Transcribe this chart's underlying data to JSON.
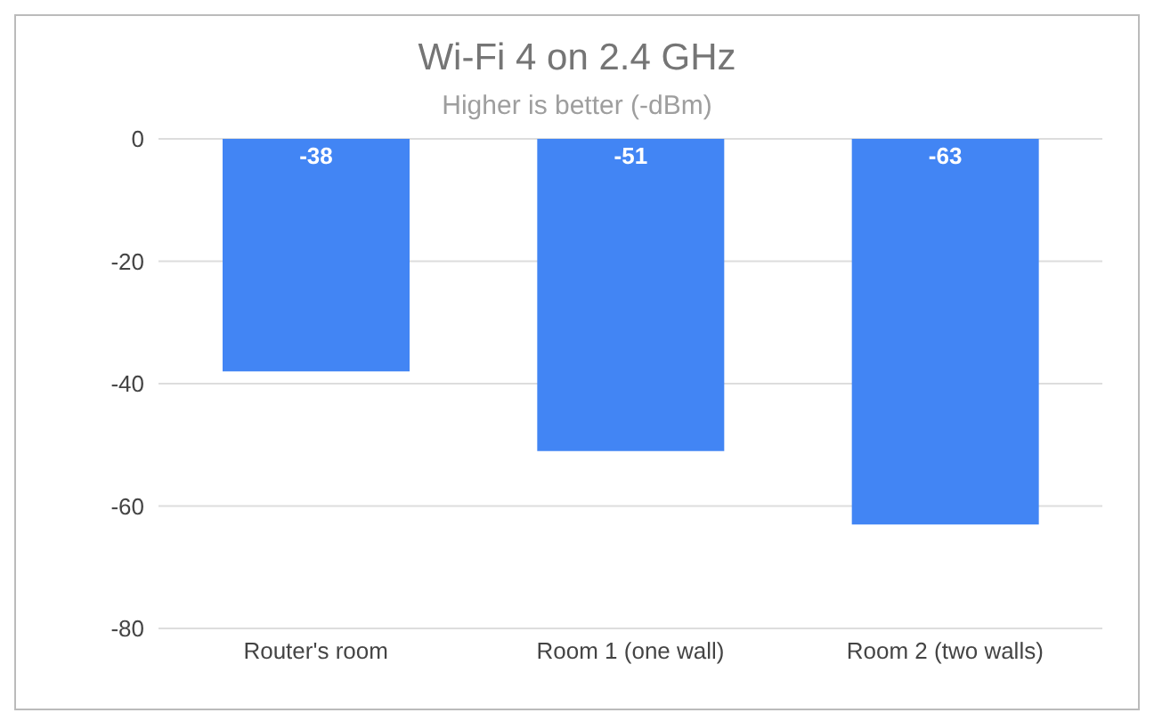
{
  "chart_data": {
    "type": "bar",
    "title": "Wi-Fi 4 on 2.4 GHz",
    "subtitle": "Higher is better (-dBm)",
    "categories": [
      "Router's room",
      "Room 1 (one wall)",
      "Room 2 (two walls)"
    ],
    "values": [
      -38,
      -51,
      -63
    ],
    "color": "#4285f4",
    "ylim": [
      -80,
      0
    ],
    "yticks": [
      -80,
      -60,
      -40,
      -20,
      0
    ],
    "grid": "y",
    "data_labels": true
  }
}
